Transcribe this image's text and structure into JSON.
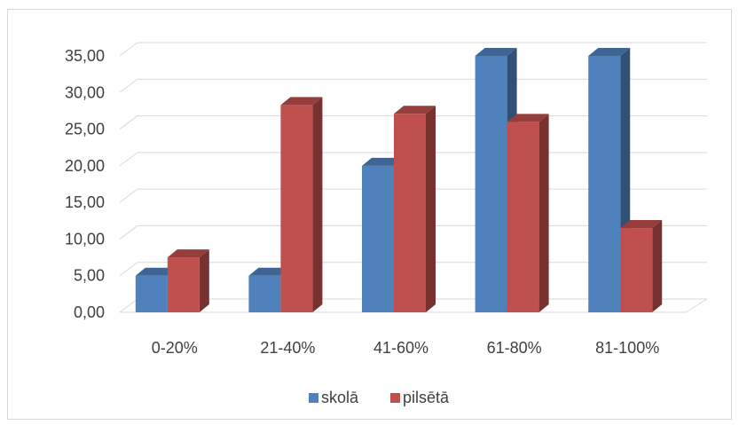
{
  "chart_data": {
    "type": "bar",
    "title": "",
    "xlabel": "",
    "ylabel": "",
    "categories": [
      "0-20%",
      "21-40%",
      "41-60%",
      "61-80%",
      "81-100%"
    ],
    "series": [
      {
        "name": "skolā",
        "values": [
          5,
          5,
          20,
          35,
          35
        ],
        "color": "#4f81bd"
      },
      {
        "name": "pilsētā",
        "values": [
          7.5,
          28.3,
          27.1,
          26,
          11.5
        ],
        "color": "#c0504d"
      }
    ],
    "ylim": [
      0,
      35
    ],
    "ytick_labels": [
      "0,00",
      "5,00",
      "10,00",
      "15,00",
      "20,00",
      "25,00",
      "30,00",
      "35,00"
    ],
    "grid": true,
    "legend_position": "bottom",
    "style": "3d-clustered-column"
  }
}
